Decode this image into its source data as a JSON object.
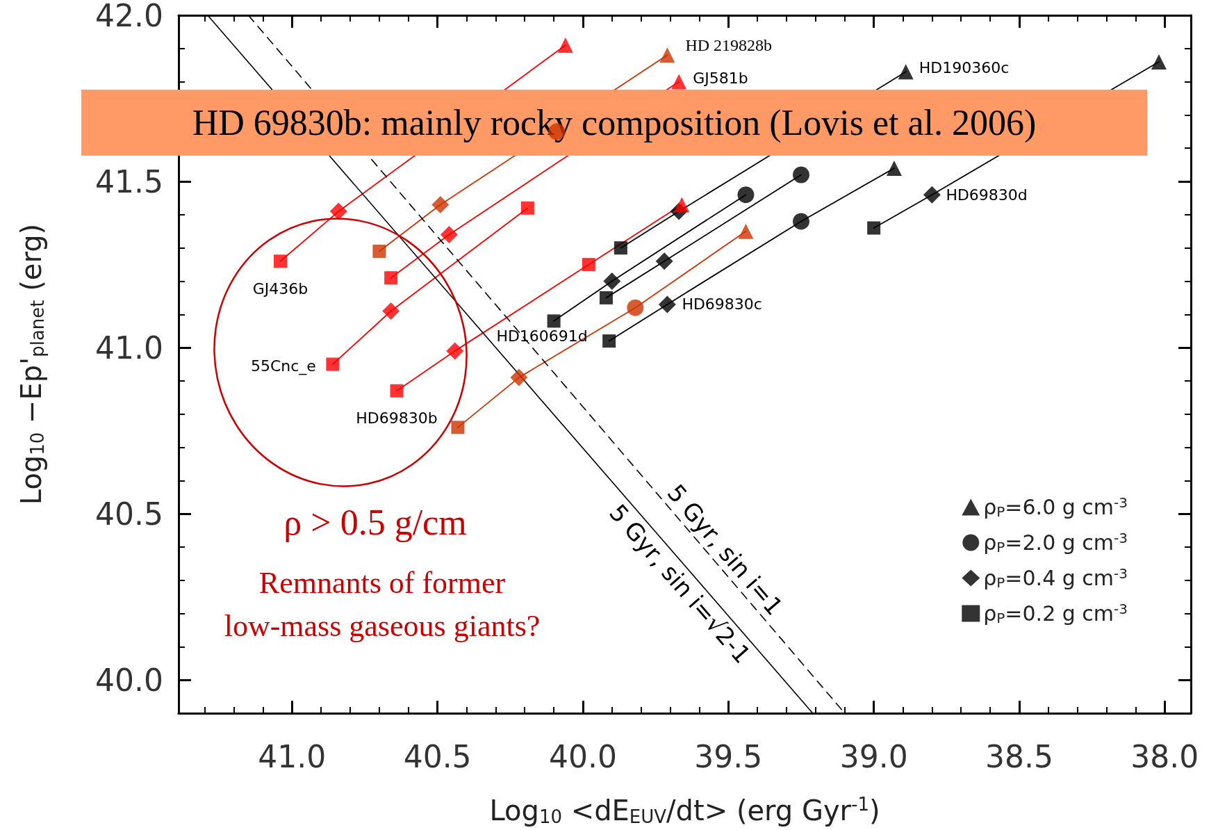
{
  "chart_data": {
    "type": "scatter",
    "xlabel": "Log$_{10}$ <dE$_{EUV}$/dt> (erg Gyr$^{-1}$)",
    "ylabel": "Log$_{10}$ −Ep'$_{planet}$ (erg)",
    "xlim": [
      41.39,
      37.91
    ],
    "ylim": [
      39.9,
      42.0
    ],
    "xticks": [
      {
        "value": 41.3,
        "label": null
      },
      {
        "value": 41.2,
        "label": null
      },
      {
        "value": 41.1,
        "label": null
      },
      {
        "value": 41.0,
        "label": "41.0"
      },
      {
        "value": 40.9,
        "label": null
      },
      {
        "value": 40.8,
        "label": null
      },
      {
        "value": 40.7,
        "label": null
      },
      {
        "value": 40.6,
        "label": null
      },
      {
        "value": 40.5,
        "label": "40.5"
      },
      {
        "value": 40.4,
        "label": null
      },
      {
        "value": 40.3,
        "label": null
      },
      {
        "value": 40.2,
        "label": null
      },
      {
        "value": 40.1,
        "label": null
      },
      {
        "value": 40.0,
        "label": "40.0"
      },
      {
        "value": 39.9,
        "label": null
      },
      {
        "value": 39.8,
        "label": null
      },
      {
        "value": 39.7,
        "label": null
      },
      {
        "value": 39.6,
        "label": null
      },
      {
        "value": 39.5,
        "label": "39.5"
      },
      {
        "value": 39.4,
        "label": null
      },
      {
        "value": 39.3,
        "label": null
      },
      {
        "value": 39.2,
        "label": null
      },
      {
        "value": 39.1,
        "label": null
      },
      {
        "value": 39.0,
        "label": "39.0"
      },
      {
        "value": 38.9,
        "label": null
      },
      {
        "value": 38.8,
        "label": null
      },
      {
        "value": 38.7,
        "label": null
      },
      {
        "value": 38.6,
        "label": null
      },
      {
        "value": 38.5,
        "label": "38.5"
      },
      {
        "value": 38.4,
        "label": null
      },
      {
        "value": 38.3,
        "label": null
      },
      {
        "value": 38.2,
        "label": null
      },
      {
        "value": 38.1,
        "label": null
      },
      {
        "value": 38.0,
        "label": "38.0"
      }
    ],
    "yticks": [
      {
        "value": 40.0,
        "label": "40.0"
      },
      {
        "value": 40.1,
        "label": null
      },
      {
        "value": 40.2,
        "label": null
      },
      {
        "value": 40.3,
        "label": null
      },
      {
        "value": 40.4,
        "label": null
      },
      {
        "value": 40.5,
        "label": "40.5"
      },
      {
        "value": 40.6,
        "label": null
      },
      {
        "value": 40.7,
        "label": null
      },
      {
        "value": 40.8,
        "label": null
      },
      {
        "value": 40.9,
        "label": null
      },
      {
        "value": 41.0,
        "label": "41.0"
      },
      {
        "value": 41.1,
        "label": null
      },
      {
        "value": 41.2,
        "label": null
      },
      {
        "value": 41.3,
        "label": null
      },
      {
        "value": 41.4,
        "label": null
      },
      {
        "value": 41.5,
        "label": "41.5"
      },
      {
        "value": 41.6,
        "label": null
      },
      {
        "value": 41.7,
        "label": null
      },
      {
        "value": 41.8,
        "label": null
      },
      {
        "value": 41.9,
        "label": null
      },
      {
        "value": 42.0,
        "label": "42.0"
      }
    ],
    "legend": "bottom right",
    "series": [
      {
        "type": "line",
        "color": "#ff0000",
        "marker": "none",
        "x": [
          41.04,
          40.84,
          40.06
        ],
        "values": [
          41.26,
          41.41,
          41.91
        ]
      },
      {
        "type": "line",
        "color": "#ff0000",
        "marker": "none",
        "x": [
          40.66,
          40.46,
          39.67
        ],
        "values": [
          41.21,
          41.34,
          41.8
        ]
      },
      {
        "type": "line",
        "color": "#ff0000",
        "marker": "none",
        "x": [
          40.86,
          40.66,
          40.19
        ],
        "values": [
          40.95,
          41.11,
          41.42
        ]
      },
      {
        "type": "line",
        "color": "#ff0000",
        "marker": "none",
        "x": [
          40.64,
          40.44,
          39.98,
          39.66
        ],
        "values": [
          40.87,
          40.99,
          41.25,
          41.43
        ]
      },
      {
        "type": "line",
        "color": "#cc3300",
        "marker": "none",
        "x": [
          40.7,
          40.49,
          39.71
        ],
        "values": [
          41.29,
          41.43,
          41.88
        ]
      },
      {
        "type": "line",
        "color": "#cc3300",
        "marker": "none",
        "x": [
          40.43,
          40.22,
          39.82,
          39.44
        ],
        "values": [
          40.76,
          40.91,
          41.12,
          41.35
        ]
      },
      {
        "type": "line",
        "color": "#000000",
        "marker": "none",
        "x": [
          39.87,
          39.67,
          38.89
        ],
        "values": [
          41.3,
          41.41,
          41.83
        ]
      },
      {
        "type": "line",
        "color": "#000000",
        "marker": "none",
        "x": [
          40.1,
          39.9,
          39.44
        ],
        "values": [
          41.08,
          41.2,
          41.46
        ]
      },
      {
        "type": "line",
        "color": "#000000",
        "marker": "none",
        "x": [
          39.92,
          39.72,
          39.25
        ],
        "values": [
          41.15,
          41.26,
          41.52
        ]
      },
      {
        "type": "line",
        "color": "#000000",
        "marker": "none",
        "x": [
          39.91,
          39.71,
          39.25,
          38.93
        ],
        "values": [
          41.02,
          41.13,
          41.38,
          41.54
        ]
      },
      {
        "type": "line",
        "color": "#000000",
        "marker": "none",
        "x": [
          39.0,
          38.8,
          38.02
        ],
        "values": [
          41.36,
          41.46,
          41.86
        ]
      },
      {
        "type": "line",
        "name": "5 Gyr, sin i=√2-1",
        "color": "#000000",
        "marker": "none",
        "line_style": "solid",
        "x": [
          41.29,
          39.21
        ],
        "values": [
          42.0,
          39.9
        ]
      },
      {
        "type": "line",
        "name": "5 Gyr, sin i=1",
        "color": "#000000",
        "marker": "none",
        "line_style": "dashed",
        "x": [
          41.15,
          39.1
        ],
        "values": [
          42.0,
          39.9
        ]
      },
      {
        "name": "ρ$_{P}$=6.0 g cm$^{-3}$",
        "color": "#000000",
        "marker": "triangle",
        "x": [
          40.06,
          39.67,
          39.66,
          39.71,
          39.44,
          38.89,
          38.93,
          38.02
        ],
        "values": [
          41.91,
          41.8,
          41.43,
          41.88,
          41.35,
          41.83,
          41.54,
          41.86
        ],
        "colors": [
          "#ff0000",
          "#ff0000",
          "#ff0000",
          "#cc3300",
          "#cc3300",
          "#000000",
          "#000000",
          "#000000"
        ]
      },
      {
        "name": "ρ$_{P}$=2.0 g cm$^{-3}$",
        "color": "#000000",
        "marker": "circle",
        "x": [
          40.09,
          39.82,
          39.44,
          39.25,
          39.25
        ],
        "values": [
          41.65,
          41.12,
          41.46,
          41.52,
          41.38
        ],
        "colors": [
          "#cc3300",
          "#cc3300",
          "#000000",
          "#000000",
          "#000000"
        ]
      },
      {
        "name": "ρ$_{P}$=0.4 g cm$^{-3}$",
        "color": "#000000",
        "marker": "diamond",
        "x": [
          40.84,
          40.46,
          40.66,
          40.44,
          40.49,
          40.22,
          39.67,
          39.9,
          39.72,
          39.71,
          38.8
        ],
        "values": [
          41.41,
          41.34,
          41.11,
          40.99,
          41.43,
          40.91,
          41.41,
          41.2,
          41.26,
          41.13,
          41.46
        ],
        "colors": [
          "#ff0000",
          "#ff0000",
          "#ff0000",
          "#ff0000",
          "#cc3300",
          "#cc3300",
          "#000000",
          "#000000",
          "#000000",
          "#000000",
          "#000000"
        ]
      },
      {
        "name": "ρ$_{P}$=0.2 g cm$^{-3}$",
        "color": "#000000",
        "marker": "square",
        "x": [
          41.04,
          40.66,
          40.86,
          40.19,
          40.64,
          39.98,
          40.7,
          40.43,
          39.87,
          40.1,
          39.92,
          39.91,
          39.0
        ],
        "values": [
          41.26,
          41.21,
          40.95,
          41.42,
          40.87,
          41.25,
          41.29,
          40.76,
          41.3,
          41.08,
          41.15,
          41.02,
          41.36
        ],
        "colors": [
          "#ff0000",
          "#ff0000",
          "#ff0000",
          "#ff0000",
          "#ff0000",
          "#ff0000",
          "#cc3300",
          "#cc3300",
          "#000000",
          "#000000",
          "#000000",
          "#000000",
          "#000000"
        ]
      }
    ],
    "annotations": [
      {
        "text": "GJ436b",
        "x": 41.04,
        "y": 41.26
      },
      {
        "text": "55Cnc_e",
        "x": 40.86,
        "y": 40.95
      },
      {
        "text": "HD69830b",
        "x": 40.64,
        "y": 40.87
      },
      {
        "text": "HD 219828b",
        "x": 39.71,
        "y": 41.88
      },
      {
        "text": "GJ581b",
        "x": 39.67,
        "y": 41.8
      },
      {
        "text": "HD190360c",
        "x": 38.89,
        "y": 41.83
      },
      {
        "text": "HD69830d",
        "x": 38.8,
        "y": 41.46
      },
      {
        "text": "HD69830c",
        "x": 39.71,
        "y": 41.13
      },
      {
        "text": "HD160691d",
        "x": 40.1,
        "y": 41.08
      },
      "HD 69830b: mainly rocky composition (Lovis et al. 2006)",
      "ρ > 0.5 g/cm",
      "Remnants of former low-mass gaseous giants?"
    ]
  }
}
